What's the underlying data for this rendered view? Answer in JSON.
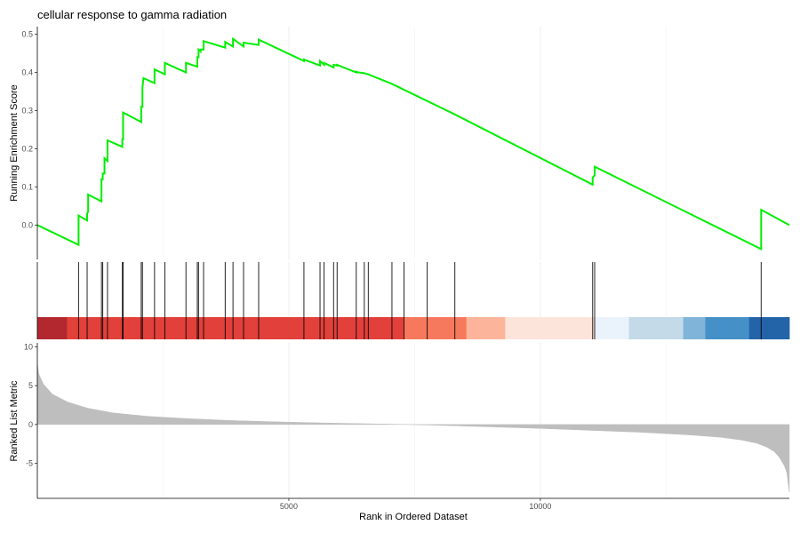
{
  "chart_data": {
    "type": "line",
    "title": "cellular response to gamma radiation",
    "xlabel": "Rank in Ordered Dataset",
    "xlim": [
      0,
      14950
    ],
    "x_ticks": [
      5000,
      10000
    ],
    "x_tick_labels": [
      "5000",
      "10000"
    ],
    "grid": "vertical major and minor lines",
    "colors": {
      "line": "#00ee00",
      "hits": "#000000",
      "metric_fill": "#bebebe",
      "background": "#ffffff"
    },
    "panels": [
      {
        "name": "running_enrichment",
        "ylabel": "Running Enrichment Score",
        "ylim": [
          -0.09,
          0.52
        ],
        "y_ticks": [
          0.0,
          0.1,
          0.2,
          0.3,
          0.4,
          0.5
        ],
        "y_tick_labels": [
          "0.0",
          "0.1",
          "0.2",
          "0.3",
          "0.4",
          "0.5"
        ],
        "series": [
          {
            "x": [
              0,
              820,
              820,
              990,
              990,
              1010,
              1010,
              1275,
              1275,
              1300,
              1300,
              1335,
              1335,
              1395,
              1395,
              1690,
              1690,
              1705,
              1705,
              2065,
              2065,
              2090,
              2090,
              2110,
              2110,
              2330,
              2330,
              2535,
              2535,
              2955,
              2955,
              3180,
              3180,
              3205,
              3205,
              3245,
              3245,
              3305,
              3305,
              3735,
              3735,
              3890,
              3890,
              4100,
              4100,
              4400,
              4400,
              5300,
              5300,
              5620,
              5620,
              5700,
              5700,
              5890,
              5890,
              5960,
              5960,
              6340,
              6340,
              6380,
              6380,
              6500,
              6500,
              6580,
              6580,
              7050,
              7050,
              8300,
              8300,
              11040,
              11040,
              11080,
              11080,
              14390,
              14390,
              14950
            ],
            "y": [
              0.0,
              -0.052,
              0.025,
              0.012,
              0.03,
              0.035,
              0.08,
              0.062,
              0.12,
              0.12,
              0.135,
              0.135,
              0.175,
              0.168,
              0.222,
              0.205,
              0.225,
              0.225,
              0.295,
              0.27,
              0.31,
              0.31,
              0.36,
              0.385,
              0.385,
              0.372,
              0.408,
              0.395,
              0.425,
              0.4,
              0.425,
              0.415,
              0.44,
              0.44,
              0.46,
              0.455,
              0.46,
              0.46,
              0.482,
              0.465,
              0.48,
              0.468,
              0.488,
              0.468,
              0.478,
              0.472,
              0.486,
              0.43,
              0.434,
              0.418,
              0.43,
              0.42,
              0.425,
              0.413,
              0.42,
              0.418,
              0.42,
              0.4,
              0.402,
              0.4,
              0.4,
              0.398,
              0.398,
              0.395,
              0.395,
              0.37,
              0.37,
              0.29,
              0.29,
              0.106,
              0.125,
              0.13,
              0.153,
              -0.063,
              0.04,
              0.0
            ]
          }
        ]
      },
      {
        "name": "gene_hits",
        "hit_positions": [
          820,
          990,
          1275,
          1300,
          1395,
          1690,
          1705,
          2065,
          2090,
          2330,
          2535,
          2955,
          3180,
          3205,
          3305,
          3735,
          3890,
          4100,
          4400,
          5300,
          5620,
          5700,
          5890,
          5960,
          6340,
          6500,
          6580,
          7050,
          7290,
          7750,
          8300,
          11040,
          11080,
          14390
        ],
        "rank_color_bar": [
          {
            "from": 0,
            "to": 590,
            "color": "#b2282e"
          },
          {
            "from": 590,
            "to": 7280,
            "color": "#e2403a"
          },
          {
            "from": 7280,
            "to": 8530,
            "color": "#f7795d"
          },
          {
            "from": 8530,
            "to": 9300,
            "color": "#fcb49b"
          },
          {
            "from": 9300,
            "to": 11070,
            "color": "#fde4da"
          },
          {
            "from": 11070,
            "to": 11760,
            "color": "#eaf2fb"
          },
          {
            "from": 11760,
            "to": 12840,
            "color": "#c4dae9"
          },
          {
            "from": 12840,
            "to": 13280,
            "color": "#80b5d9"
          },
          {
            "from": 13280,
            "to": 14150,
            "color": "#4690c8"
          },
          {
            "from": 14150,
            "to": 14950,
            "color": "#2364a9"
          }
        ]
      },
      {
        "name": "ranked_list_metric",
        "ylabel": "Ranked List Metric",
        "ylim": [
          -9.5,
          10.5
        ],
        "y_ticks": [
          10,
          5,
          0,
          -5
        ],
        "y_tick_labels": [
          "10",
          "5",
          "0",
          "-5"
        ],
        "series": [
          {
            "x": [
              0,
              30,
              120,
              300,
              600,
              1000,
              1500,
              2200,
              3000,
              4000,
              5000,
              6000,
              7000,
              7400,
              8000,
              9000,
              10000,
              11000,
              12000,
              13000,
              13600,
              14000,
              14300,
              14500,
              14650,
              14750,
              14850,
              14900,
              14950
            ],
            "y": [
              7.8,
              6.5,
              5.2,
              3.9,
              2.9,
              2.1,
              1.5,
              1.05,
              0.75,
              0.48,
              0.3,
              0.16,
              0.05,
              0.0,
              -0.1,
              -0.3,
              -0.5,
              -0.75,
              -1.0,
              -1.35,
              -1.65,
              -2.0,
              -2.4,
              -2.9,
              -3.5,
              -4.2,
              -5.3,
              -6.2,
              -8.7
            ]
          }
        ]
      }
    ]
  }
}
